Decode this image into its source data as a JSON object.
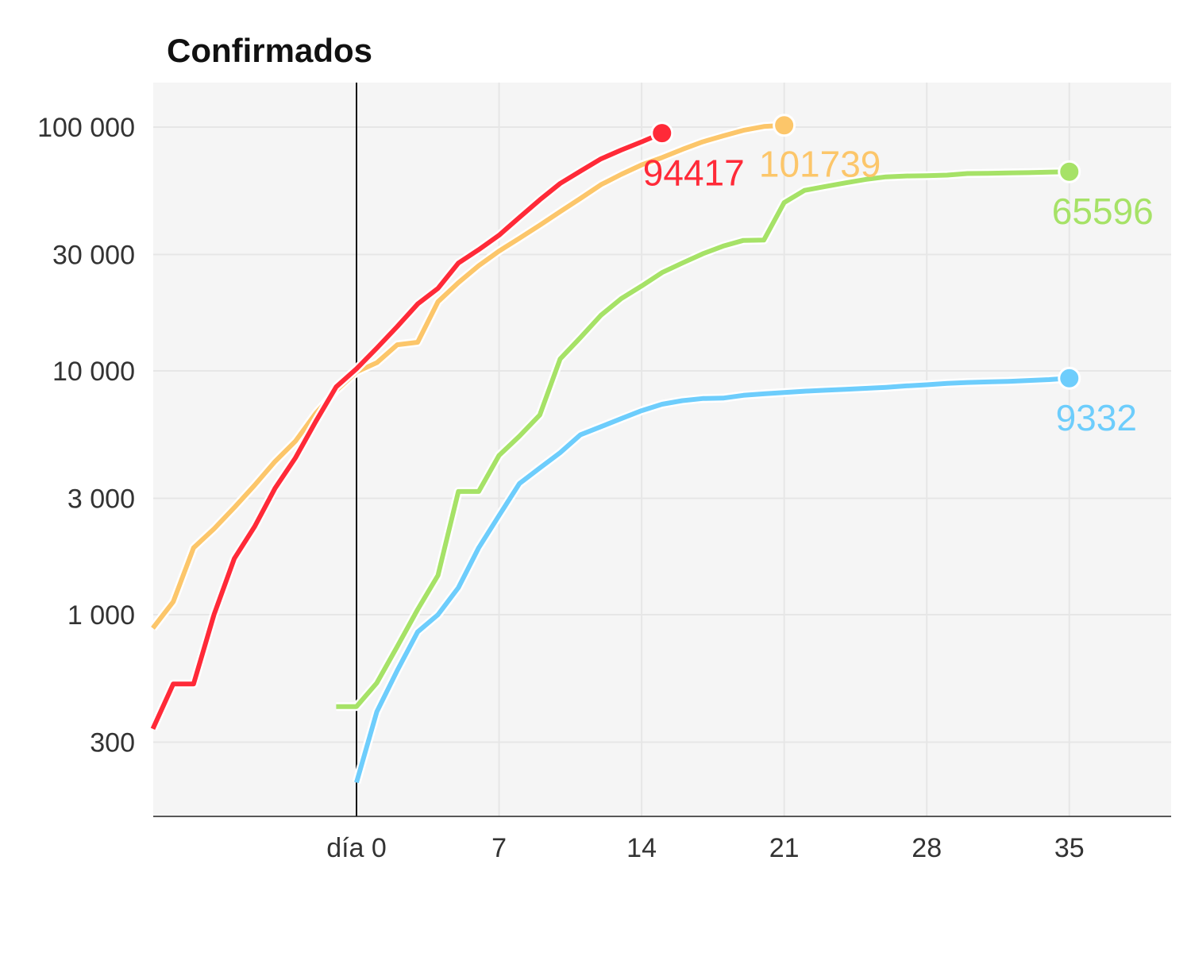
{
  "title": "Confirmados",
  "chart_data": {
    "type": "line",
    "title": "Confirmados",
    "xlabel": "",
    "ylabel": "",
    "y_scale": "log",
    "xlim": [
      -10,
      40
    ],
    "ylim": [
      180,
      140000
    ],
    "x_ticks": [
      {
        "value": 0,
        "label": "día 0"
      },
      {
        "value": 7,
        "label": "7"
      },
      {
        "value": 14,
        "label": "14"
      },
      {
        "value": 21,
        "label": "21"
      },
      {
        "value": 28,
        "label": "28"
      },
      {
        "value": 35,
        "label": "35"
      }
    ],
    "y_ticks": [
      {
        "value": 300,
        "label": "300"
      },
      {
        "value": 1000,
        "label": "1 000"
      },
      {
        "value": 3000,
        "label": "3 000"
      },
      {
        "value": 10000,
        "label": "10 000"
      },
      {
        "value": 30000,
        "label": "30 000"
      },
      {
        "value": 100000,
        "label": "100 000"
      }
    ],
    "grid": true,
    "series": [
      {
        "color": "#fcc66a",
        "end_label": "101739",
        "x": [
          -10,
          -9,
          -8,
          -7,
          -6,
          -5,
          -4,
          -3,
          -2,
          -1,
          0,
          1,
          2,
          3,
          4,
          5,
          6,
          7,
          8,
          9,
          10,
          11,
          12,
          13,
          14,
          15,
          16,
          17,
          18,
          19,
          20,
          21
        ],
        "y": [
          880,
          1130,
          1880,
          2250,
          2750,
          3400,
          4250,
          5150,
          6700,
          8300,
          9900,
          10800,
          12800,
          13100,
          19200,
          23000,
          27000,
          31000,
          35000,
          39600,
          45000,
          51000,
          58000,
          64000,
          70000,
          75000,
          81000,
          87000,
          92000,
          97000,
          100500,
          101739
        ]
      },
      {
        "color": "#ff2a38",
        "end_label": "94417",
        "x": [
          -10,
          -9,
          -8,
          -7,
          -6,
          -5,
          -4,
          -3,
          -2,
          -1,
          0,
          1,
          2,
          3,
          4,
          5,
          6,
          7,
          8,
          9,
          10,
          11,
          12,
          13,
          14,
          15
        ],
        "y": [
          340,
          520,
          520,
          1000,
          1700,
          2300,
          3300,
          4400,
          6200,
          8600,
          10200,
          12400,
          15200,
          18800,
          21800,
          27700,
          31400,
          36000,
          42600,
          50300,
          58700,
          66000,
          74000,
          80500,
          87000,
          94417
        ]
      },
      {
        "color": "#a6e267",
        "end_label": "65596",
        "x": [
          -1,
          0,
          1,
          2,
          3,
          4,
          5,
          6,
          7,
          8,
          9,
          10,
          11,
          12,
          13,
          14,
          15,
          16,
          17,
          18,
          19,
          20,
          21,
          22,
          23,
          24,
          25,
          26,
          27,
          28,
          29,
          30,
          31,
          32,
          33,
          34,
          35
        ],
        "y": [
          420,
          420,
          525,
          740,
          1050,
          1450,
          3200,
          3200,
          4500,
          5400,
          6600,
          11200,
          13700,
          16900,
          19800,
          22300,
          25300,
          27700,
          30200,
          32500,
          34300,
          34400,
          49000,
          55000,
          57000,
          59000,
          61000,
          62500,
          63000,
          63200,
          63500,
          64500,
          64600,
          64800,
          65000,
          65300,
          65596
        ]
      },
      {
        "color": "#6dcdfc",
        "end_label": "9332",
        "x": [
          0,
          1,
          2,
          3,
          4,
          5,
          6,
          7,
          8,
          9,
          10,
          11,
          12,
          13,
          14,
          15,
          16,
          17,
          18,
          19,
          20,
          21,
          22,
          23,
          24,
          25,
          26,
          27,
          28,
          29,
          30,
          31,
          32,
          33,
          34,
          35
        ],
        "y": [
          205,
          400,
          590,
          850,
          1000,
          1290,
          1880,
          2550,
          3450,
          4000,
          4620,
          5470,
          5900,
          6370,
          6870,
          7300,
          7550,
          7700,
          7730,
          7940,
          8050,
          8150,
          8250,
          8330,
          8400,
          8480,
          8560,
          8680,
          8770,
          8880,
          8960,
          9010,
          9060,
          9130,
          9210,
          9332
        ]
      }
    ]
  }
}
